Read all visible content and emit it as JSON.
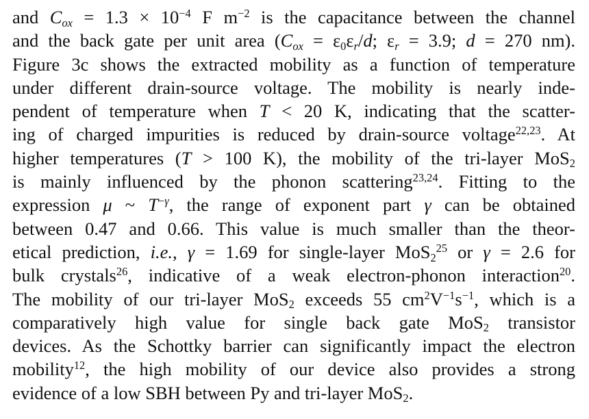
{
  "paragraph": {
    "lines": [
      "and C<sub>ox</sub> = 1.3 × 10<sup>−4</sup> F m<sup>−2</sup> is the capacitance between the channel",
      "and the back gate per unit area (C<sub>ox</sub> = ε<sub>0</sub>ε<sub>r</sub>/d; ε<sub>r</sub> = 3.9; d = 270 nm).",
      "Figure 3c shows the extracted mobility as a function of temperature",
      "under different drain-source voltage. The mobility is nearly inde-",
      "pendent of temperature when T < 20 K, indicating that the scatter-",
      "ing of charged impurities is reduced by drain-source voltage<sup>22,23</sup>. At",
      "higher temperatures (T > 100 K), the mobility of the tri-layer MoS<sub>2</sub>",
      "is mainly influenced by the phonon scattering<sup>23,24</sup>. Fitting to the",
      "expression μ ~ T<sup>−γ</sup>, the range of exponent part γ can be obtained",
      "between 0.47 and 0.66. This value is much smaller than the theor-",
      "etical prediction, i.e., γ = 1.69 for single-layer MoS<sub>2</sub><sup>25</sup> or γ = 2.6 for",
      "bulk crystals<sup>26</sup>, indicative of a weak electron-phonon interaction<sup>20</sup>.",
      "The mobility of our tri-layer MoS<sub>2</sub> exceeds 55 cm<sup>2</sup>V<sup>−1</sup>s<sup>−1</sup>, which is a",
      "comparatively high value for single back gate MoS<sub>2</sub> transistor",
      "devices. As the Schottky barrier can significantly impact the electron",
      "mobility<sup>12</sup>, the high mobility of our device also provides a strong",
      "evidence of a low SBH between Py and tri-layer MoS<sub>2</sub>."
    ]
  }
}
